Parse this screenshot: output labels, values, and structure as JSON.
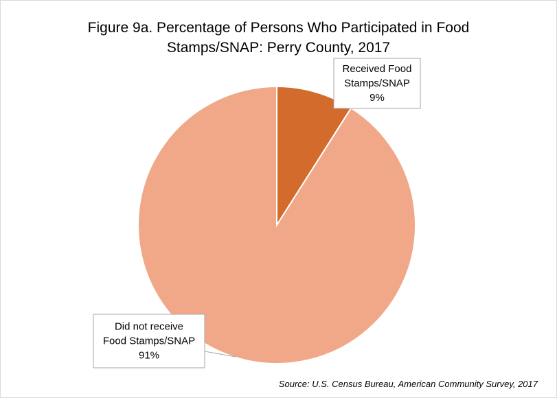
{
  "chart_data": {
    "type": "pie",
    "title_lines": [
      "Figure 9a. Percentage of Persons Who Participated in Food",
      "Stamps/SNAP: Perry County, 2017"
    ],
    "slices": [
      {
        "name": "Received Food Stamps/SNAP",
        "label_lines": [
          "Received Food",
          "Stamps/SNAP",
          "9%"
        ],
        "value": 9,
        "color": "#d26b2b"
      },
      {
        "name": "Did not receive Food Stamps/SNAP",
        "label_lines": [
          "Did not receive",
          "Food Stamps/SNAP",
          "91%"
        ],
        "value": 91,
        "color": "#f0a889"
      }
    ],
    "source": "Source: U.S. Census Bureau, American Community Survey, 2017"
  }
}
